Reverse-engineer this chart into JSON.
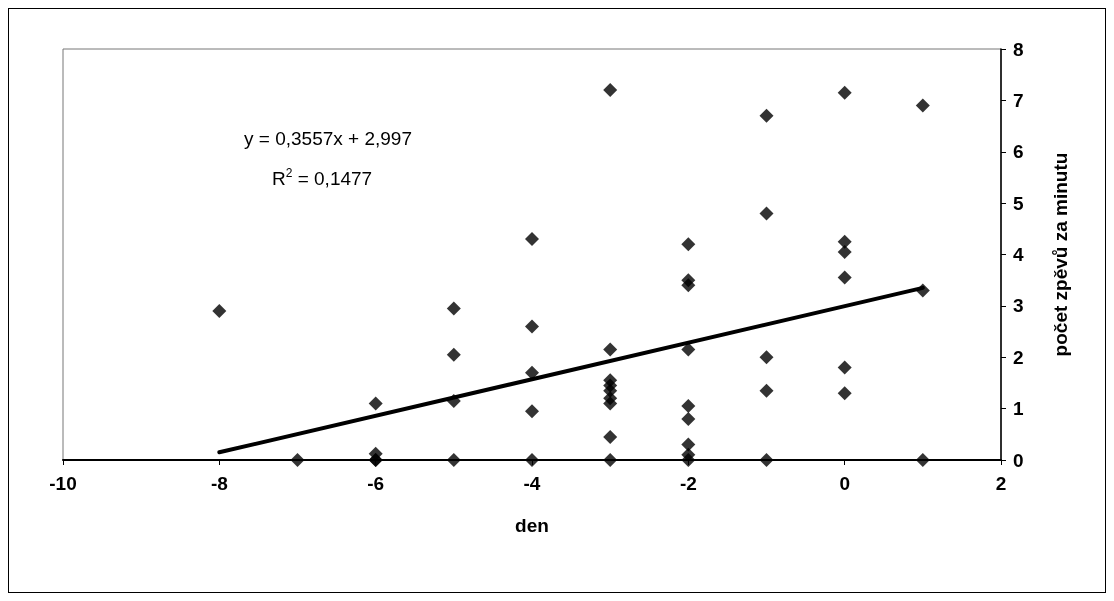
{
  "chart_data": {
    "type": "scatter",
    "xlabel": "den",
    "ylabel": "počet zpěvů za minutu",
    "xlim": [
      -10,
      2
    ],
    "xticks": [
      -10,
      -8,
      -6,
      -4,
      -2,
      0,
      2
    ],
    "ylim": [
      0,
      8
    ],
    "yticks": [
      0,
      1,
      2,
      3,
      4,
      5,
      6,
      7,
      8
    ],
    "grid": false,
    "marker": "diamond",
    "annotations": [
      "y = 0,3557x + 2,997",
      "R$^{2}$ = 0,1477"
    ],
    "series": [
      {
        "color": "#000000",
        "x": [
          -8,
          -7,
          -6,
          -6,
          -6,
          -6,
          -5,
          -5,
          -5,
          -5,
          -4,
          -4,
          -4,
          -4,
          -4,
          -3,
          -3,
          -3,
          -3,
          -3,
          -3,
          -3,
          -3,
          -3,
          -2,
          -2,
          -2,
          -2,
          -2,
          -2,
          -2,
          -2,
          -2,
          -1,
          -1,
          -1,
          -1,
          -1,
          0,
          0,
          0,
          0,
          0,
          0,
          1,
          1,
          1
        ],
        "values": [
          2.9,
          0,
          1.1,
          0.12,
          0,
          0,
          2.95,
          2.05,
          1.15,
          0,
          4.3,
          2.6,
          1.7,
          0.95,
          0,
          7.2,
          2.15,
          1.55,
          1.45,
          1.35,
          1.2,
          1.1,
          0.45,
          0,
          4.2,
          3.5,
          3.4,
          2.15,
          1.05,
          0.8,
          0.3,
          0.1,
          0,
          6.7,
          4.8,
          2.0,
          1.35,
          0,
          7.15,
          4.25,
          4.05,
          3.55,
          1.8,
          1.3,
          6.9,
          3.3,
          0
        ]
      },
      {
        "type": "line",
        "color": "#000000",
        "marker": "none",
        "line_style": "solid",
        "x": [
          -8,
          1
        ],
        "values": [
          0.15,
          3.35
        ]
      }
    ]
  }
}
